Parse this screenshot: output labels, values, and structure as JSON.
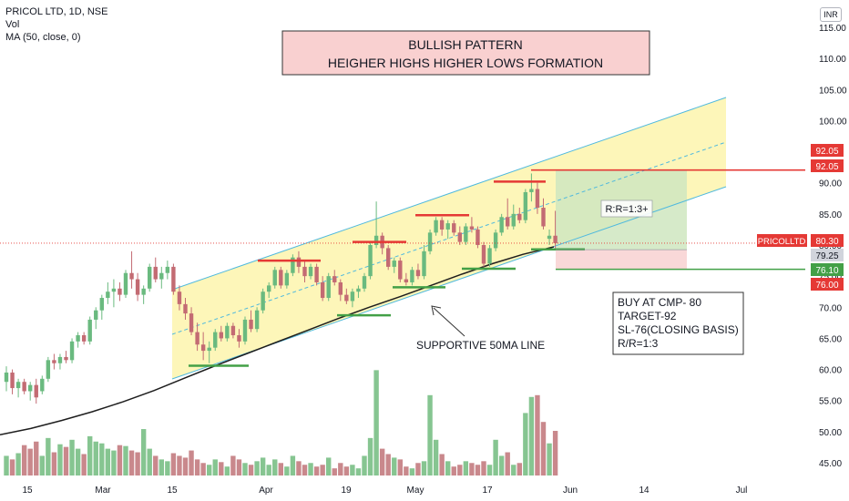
{
  "legend": {
    "symbol": "PRICOL LTD, 1D, NSE",
    "vol": "Vol",
    "ma": "MA (50, close, 0)"
  },
  "currency_button": "INR",
  "chart_data": {
    "type": "candlestick",
    "title": "",
    "xlabel": "",
    "ylabel": "",
    "ylim": [
      43,
      118
    ],
    "grid": false,
    "x_ticks": [
      "15",
      "Mar",
      "15",
      "Apr",
      "19",
      "May",
      "17",
      "Jun",
      "14",
      "Jul"
    ],
    "y_ticks": [
      45,
      50,
      55,
      60,
      65,
      70,
      75,
      80,
      85,
      90,
      95,
      100,
      105,
      110,
      115
    ],
    "candles": [
      {
        "o": 58.0,
        "h": 60.5,
        "l": 56.5,
        "c": 59.5
      },
      {
        "o": 59.5,
        "h": 60.0,
        "l": 56.0,
        "c": 57.0
      },
      {
        "o": 57.0,
        "h": 58.5,
        "l": 55.5,
        "c": 58.0
      },
      {
        "o": 58.0,
        "h": 58.5,
        "l": 56.0,
        "c": 56.5
      },
      {
        "o": 56.5,
        "h": 58.0,
        "l": 55.0,
        "c": 57.5
      },
      {
        "o": 57.5,
        "h": 58.5,
        "l": 54.5,
        "c": 55.5
      },
      {
        "o": 56.5,
        "h": 59.0,
        "l": 56.0,
        "c": 58.5
      },
      {
        "o": 58.5,
        "h": 62.0,
        "l": 58.0,
        "c": 61.5
      },
      {
        "o": 61.5,
        "h": 62.5,
        "l": 60.0,
        "c": 61.0
      },
      {
        "o": 61.0,
        "h": 62.5,
        "l": 60.0,
        "c": 62.0
      },
      {
        "o": 62.0,
        "h": 63.0,
        "l": 61.0,
        "c": 61.5
      },
      {
        "o": 61.5,
        "h": 65.0,
        "l": 61.0,
        "c": 64.5
      },
      {
        "o": 64.5,
        "h": 66.0,
        "l": 63.5,
        "c": 65.5
      },
      {
        "o": 65.5,
        "h": 66.0,
        "l": 64.0,
        "c": 64.5
      },
      {
        "o": 64.5,
        "h": 68.5,
        "l": 64.0,
        "c": 68.0
      },
      {
        "o": 68.0,
        "h": 70.0,
        "l": 66.5,
        "c": 69.5
      },
      {
        "o": 69.5,
        "h": 72.0,
        "l": 68.0,
        "c": 71.5
      },
      {
        "o": 71.5,
        "h": 74.0,
        "l": 70.5,
        "c": 72.5
      },
      {
        "o": 72.5,
        "h": 74.5,
        "l": 70.0,
        "c": 73.0
      },
      {
        "o": 73.0,
        "h": 74.0,
        "l": 71.0,
        "c": 72.0
      },
      {
        "o": 72.0,
        "h": 76.0,
        "l": 71.5,
        "c": 75.5
      },
      {
        "o": 75.5,
        "h": 79.0,
        "l": 73.0,
        "c": 74.5
      },
      {
        "o": 74.5,
        "h": 75.5,
        "l": 71.0,
        "c": 72.0
      },
      {
        "o": 72.0,
        "h": 73.5,
        "l": 70.5,
        "c": 73.0
      },
      {
        "o": 73.0,
        "h": 77.0,
        "l": 72.5,
        "c": 76.5
      },
      {
        "o": 76.5,
        "h": 78.0,
        "l": 74.0,
        "c": 74.5
      },
      {
        "o": 74.5,
        "h": 76.5,
        "l": 73.0,
        "c": 75.5
      },
      {
        "o": 75.5,
        "h": 77.5,
        "l": 74.5,
        "c": 76.5
      },
      {
        "o": 76.5,
        "h": 77.0,
        "l": 72.0,
        "c": 72.5
      },
      {
        "o": 72.5,
        "h": 73.5,
        "l": 69.5,
        "c": 70.5
      },
      {
        "o": 70.5,
        "h": 71.5,
        "l": 68.0,
        "c": 69.0
      },
      {
        "o": 69.0,
        "h": 70.0,
        "l": 65.5,
        "c": 66.0
      },
      {
        "o": 66.0,
        "h": 67.5,
        "l": 63.0,
        "c": 64.0
      },
      {
        "o": 64.0,
        "h": 66.0,
        "l": 61.5,
        "c": 63.0
      },
      {
        "o": 63.0,
        "h": 64.5,
        "l": 61.0,
        "c": 63.5
      },
      {
        "o": 63.5,
        "h": 66.5,
        "l": 63.0,
        "c": 66.0
      },
      {
        "o": 66.0,
        "h": 67.0,
        "l": 64.5,
        "c": 65.0
      },
      {
        "o": 65.0,
        "h": 67.5,
        "l": 64.5,
        "c": 67.0
      },
      {
        "o": 67.0,
        "h": 67.5,
        "l": 65.0,
        "c": 65.5
      },
      {
        "o": 65.5,
        "h": 66.5,
        "l": 63.5,
        "c": 64.5
      },
      {
        "o": 64.5,
        "h": 68.5,
        "l": 64.0,
        "c": 68.0
      },
      {
        "o": 68.0,
        "h": 69.5,
        "l": 66.0,
        "c": 66.5
      },
      {
        "o": 66.5,
        "h": 70.0,
        "l": 66.0,
        "c": 69.5
      },
      {
        "o": 69.5,
        "h": 73.0,
        "l": 69.0,
        "c": 72.5
      },
      {
        "o": 72.5,
        "h": 74.0,
        "l": 71.5,
        "c": 73.5
      },
      {
        "o": 73.5,
        "h": 76.5,
        "l": 73.0,
        "c": 76.0
      },
      {
        "o": 76.0,
        "h": 76.5,
        "l": 73.0,
        "c": 73.5
      },
      {
        "o": 73.5,
        "h": 76.0,
        "l": 73.0,
        "c": 75.5
      },
      {
        "o": 75.5,
        "h": 78.5,
        "l": 75.0,
        "c": 78.0
      },
      {
        "o": 78.0,
        "h": 79.0,
        "l": 75.5,
        "c": 76.5
      },
      {
        "o": 76.5,
        "h": 77.5,
        "l": 74.0,
        "c": 75.0
      },
      {
        "o": 75.0,
        "h": 77.0,
        "l": 74.5,
        "c": 76.5
      },
      {
        "o": 76.5,
        "h": 77.0,
        "l": 73.5,
        "c": 74.0
      },
      {
        "o": 74.0,
        "h": 75.0,
        "l": 71.0,
        "c": 71.5
      },
      {
        "o": 71.5,
        "h": 75.5,
        "l": 71.0,
        "c": 75.0
      },
      {
        "o": 75.0,
        "h": 76.0,
        "l": 73.5,
        "c": 74.0
      },
      {
        "o": 74.0,
        "h": 74.5,
        "l": 71.0,
        "c": 72.0
      },
      {
        "o": 72.0,
        "h": 73.0,
        "l": 70.5,
        "c": 71.0
      },
      {
        "o": 71.0,
        "h": 73.0,
        "l": 70.0,
        "c": 72.5
      },
      {
        "o": 72.5,
        "h": 73.5,
        "l": 71.5,
        "c": 73.0
      },
      {
        "o": 73.0,
        "h": 75.5,
        "l": 72.5,
        "c": 75.0
      },
      {
        "o": 75.0,
        "h": 80.5,
        "l": 74.5,
        "c": 80.0
      },
      {
        "o": 80.0,
        "h": 87.0,
        "l": 79.5,
        "c": 81.5
      },
      {
        "o": 81.5,
        "h": 82.0,
        "l": 78.5,
        "c": 79.5
      },
      {
        "o": 79.5,
        "h": 80.0,
        "l": 76.0,
        "c": 76.5
      },
      {
        "o": 76.5,
        "h": 78.0,
        "l": 75.5,
        "c": 77.5
      },
      {
        "o": 77.5,
        "h": 78.0,
        "l": 74.0,
        "c": 74.5
      },
      {
        "o": 74.5,
        "h": 75.5,
        "l": 73.5,
        "c": 74.0
      },
      {
        "o": 74.0,
        "h": 76.5,
        "l": 73.5,
        "c": 76.0
      },
      {
        "o": 76.0,
        "h": 77.0,
        "l": 74.5,
        "c": 75.0
      },
      {
        "o": 75.0,
        "h": 80.0,
        "l": 74.5,
        "c": 79.0
      },
      {
        "o": 79.0,
        "h": 82.5,
        "l": 78.5,
        "c": 82.0
      },
      {
        "o": 82.0,
        "h": 84.5,
        "l": 81.5,
        "c": 84.0
      },
      {
        "o": 84.0,
        "h": 84.5,
        "l": 81.5,
        "c": 82.5
      },
      {
        "o": 82.5,
        "h": 84.0,
        "l": 81.0,
        "c": 83.5
      },
      {
        "o": 83.5,
        "h": 84.0,
        "l": 81.5,
        "c": 82.0
      },
      {
        "o": 82.0,
        "h": 83.0,
        "l": 80.0,
        "c": 80.5
      },
      {
        "o": 80.5,
        "h": 83.5,
        "l": 80.0,
        "c": 83.0
      },
      {
        "o": 83.0,
        "h": 84.5,
        "l": 82.0,
        "c": 82.5
      },
      {
        "o": 82.5,
        "h": 83.0,
        "l": 79.5,
        "c": 80.0
      },
      {
        "o": 80.0,
        "h": 80.5,
        "l": 76.5,
        "c": 77.0
      },
      {
        "o": 77.0,
        "h": 80.0,
        "l": 76.5,
        "c": 79.5
      },
      {
        "o": 79.5,
        "h": 82.5,
        "l": 79.0,
        "c": 82.0
      },
      {
        "o": 82.0,
        "h": 85.0,
        "l": 81.5,
        "c": 84.5
      },
      {
        "o": 84.5,
        "h": 87.5,
        "l": 82.5,
        "c": 83.0
      },
      {
        "o": 83.0,
        "h": 86.5,
        "l": 82.5,
        "c": 85.0
      },
      {
        "o": 85.0,
        "h": 86.0,
        "l": 83.5,
        "c": 84.0
      },
      {
        "o": 84.0,
        "h": 89.0,
        "l": 83.5,
        "c": 88.5
      },
      {
        "o": 88.5,
        "h": 91.5,
        "l": 87.0,
        "c": 89.0
      },
      {
        "o": 89.0,
        "h": 90.0,
        "l": 85.0,
        "c": 86.0
      },
      {
        "o": 86.0,
        "h": 87.5,
        "l": 82.5,
        "c": 83.0
      },
      {
        "o": 81.0,
        "h": 82.5,
        "l": 80.0,
        "c": 81.5
      },
      {
        "o": 81.5,
        "h": 85.5,
        "l": 79.5,
        "c": 80.3
      }
    ],
    "volume": [
      {
        "v": 22,
        "up": true
      },
      {
        "v": 18,
        "up": false
      },
      {
        "v": 25,
        "up": true
      },
      {
        "v": 34,
        "up": false
      },
      {
        "v": 30,
        "up": false
      },
      {
        "v": 38,
        "up": false
      },
      {
        "v": 22,
        "up": true
      },
      {
        "v": 42,
        "up": true
      },
      {
        "v": 26,
        "up": false
      },
      {
        "v": 35,
        "up": true
      },
      {
        "v": 32,
        "up": false
      },
      {
        "v": 40,
        "up": true
      },
      {
        "v": 30,
        "up": true
      },
      {
        "v": 24,
        "up": false
      },
      {
        "v": 44,
        "up": true
      },
      {
        "v": 38,
        "up": true
      },
      {
        "v": 36,
        "up": true
      },
      {
        "v": 30,
        "up": true
      },
      {
        "v": 28,
        "up": true
      },
      {
        "v": 34,
        "up": false
      },
      {
        "v": 33,
        "up": true
      },
      {
        "v": 28,
        "up": false
      },
      {
        "v": 26,
        "up": false
      },
      {
        "v": 52,
        "up": true
      },
      {
        "v": 30,
        "up": true
      },
      {
        "v": 22,
        "up": false
      },
      {
        "v": 18,
        "up": true
      },
      {
        "v": 16,
        "up": true
      },
      {
        "v": 25,
        "up": false
      },
      {
        "v": 22,
        "up": false
      },
      {
        "v": 20,
        "up": false
      },
      {
        "v": 28,
        "up": false
      },
      {
        "v": 18,
        "up": false
      },
      {
        "v": 14,
        "up": false
      },
      {
        "v": 12,
        "up": true
      },
      {
        "v": 18,
        "up": true
      },
      {
        "v": 15,
        "up": false
      },
      {
        "v": 10,
        "up": true
      },
      {
        "v": 22,
        "up": false
      },
      {
        "v": 18,
        "up": false
      },
      {
        "v": 14,
        "up": true
      },
      {
        "v": 12,
        "up": false
      },
      {
        "v": 16,
        "up": true
      },
      {
        "v": 20,
        "up": true
      },
      {
        "v": 12,
        "up": true
      },
      {
        "v": 18,
        "up": true
      },
      {
        "v": 14,
        "up": false
      },
      {
        "v": 10,
        "up": true
      },
      {
        "v": 22,
        "up": true
      },
      {
        "v": 16,
        "up": false
      },
      {
        "v": 12,
        "up": false
      },
      {
        "v": 14,
        "up": true
      },
      {
        "v": 10,
        "up": false
      },
      {
        "v": 12,
        "up": false
      },
      {
        "v": 20,
        "up": true
      },
      {
        "v": 8,
        "up": false
      },
      {
        "v": 14,
        "up": false
      },
      {
        "v": 10,
        "up": false
      },
      {
        "v": 12,
        "up": true
      },
      {
        "v": 8,
        "up": true
      },
      {
        "v": 22,
        "up": true
      },
      {
        "v": 42,
        "up": true
      },
      {
        "v": 118,
        "up": true
      },
      {
        "v": 30,
        "up": false
      },
      {
        "v": 24,
        "up": false
      },
      {
        "v": 20,
        "up": true
      },
      {
        "v": 18,
        "up": false
      },
      {
        "v": 10,
        "up": false
      },
      {
        "v": 8,
        "up": true
      },
      {
        "v": 14,
        "up": false
      },
      {
        "v": 16,
        "up": true
      },
      {
        "v": 90,
        "up": true
      },
      {
        "v": 40,
        "up": true
      },
      {
        "v": 24,
        "up": false
      },
      {
        "v": 16,
        "up": true
      },
      {
        "v": 10,
        "up": false
      },
      {
        "v": 12,
        "up": false
      },
      {
        "v": 16,
        "up": true
      },
      {
        "v": 14,
        "up": false
      },
      {
        "v": 12,
        "up": false
      },
      {
        "v": 16,
        "up": false
      },
      {
        "v": 12,
        "up": true
      },
      {
        "v": 40,
        "up": true
      },
      {
        "v": 22,
        "up": true
      },
      {
        "v": 26,
        "up": false
      },
      {
        "v": 12,
        "up": true
      },
      {
        "v": 14,
        "up": false
      },
      {
        "v": 70,
        "up": true
      },
      {
        "v": 88,
        "up": true
      },
      {
        "v": 90,
        "up": false
      },
      {
        "v": 60,
        "up": false
      },
      {
        "v": 36,
        "up": true
      },
      {
        "v": 50,
        "up": false
      }
    ],
    "ma50": [
      49.5,
      50.5,
      51.8,
      53.2,
      54.8,
      56.6,
      58.6,
      60.6,
      62.5,
      64.4,
      66.3,
      68.2,
      70.0,
      71.7,
      73.5,
      75.3,
      77.0,
      78.5,
      79.7
    ],
    "annotations": {
      "title_box": [
        "BULLISH PATTERN",
        "HEIGHER HIGHS HIGHER LOWS FORMATION"
      ],
      "trade_box": [
        "BUY AT CMP- 80",
        "TARGET-92",
        "SL-76(CLOSING BASIS)",
        "R/R=1:3"
      ],
      "supportive_label": "SUPPORTIVE 50MA LINE",
      "rr_label": "R:R=1:3+"
    },
    "price_tags": {
      "target_top": "92.05",
      "target": "92.05",
      "current_name": "PRICOLLTD",
      "current": "80.30",
      "entry": "79.25",
      "stop_line": "76.10",
      "stop": "76.00"
    },
    "colors": {
      "up": "#6aba7f",
      "down": "#c36b73",
      "vol_up": "#86c591",
      "vol_down": "#c9888c",
      "channel_fill": "#fdf6b9",
      "channel_line": "#4fb9de",
      "target_red": "#e53935",
      "stop_green": "#43a047",
      "title_box_fill": "#f9d0d0",
      "profit_zone": "#cfe6c0",
      "loss_zone": "#f9d6d6"
    }
  }
}
